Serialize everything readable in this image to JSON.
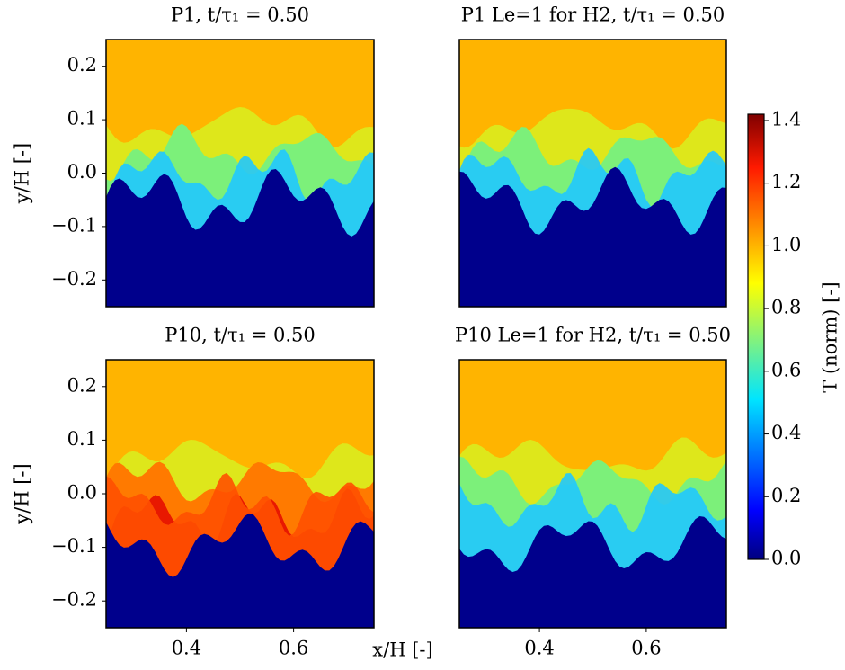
{
  "chart_data": [
    {
      "type": "heatmap",
      "title": "P1, t/τ₁ = 0.50",
      "ylabel": "y/H [-]",
      "xlim": [
        0.25,
        0.75
      ],
      "ylim": [
        -0.25,
        0.25
      ],
      "yticks": [
        {
          "value": -0.2,
          "label": "−0.2"
        },
        {
          "value": -0.1,
          "label": "−0.1"
        },
        {
          "value": 0.0,
          "label": "0.0"
        },
        0.1,
        0.2
      ]
    },
    {
      "type": "heatmap",
      "title": "P1 Le=1 for H2, t/τ₁ = 0.50",
      "xlim": [
        0.25,
        0.75
      ],
      "ylim": [
        -0.25,
        0.25
      ]
    },
    {
      "type": "heatmap",
      "title": "P10, t/τ₁ = 0.50",
      "ylabel": "y/H [-]",
      "xlim": [
        0.25,
        0.75
      ],
      "ylim": [
        -0.25,
        0.25
      ],
      "yticks": [
        {
          "value": -0.2,
          "label": "−0.2"
        },
        {
          "value": -0.1,
          "label": "−0.1"
        },
        {
          "value": 0.0,
          "label": "0.0"
        },
        0.1,
        0.2
      ],
      "xticks": [
        0.4,
        0.6
      ]
    },
    {
      "type": "heatmap",
      "title": "P10 Le=1 for H2, t/τ₁ = 0.50",
      "xlim": [
        0.25,
        0.75
      ],
      "ylim": [
        -0.25,
        0.25
      ],
      "xticks": [
        0.4,
        0.6
      ]
    }
  ],
  "xlabel": "x/H [-]",
  "colorbar": {
    "label": "T (norm) [-]",
    "colormap": "jet",
    "lim": [
      0,
      1.42
    ],
    "ticks": [
      {
        "value": 0.0,
        "label": "0.0"
      },
      0.2,
      0.4,
      0.6,
      0.8,
      {
        "value": 1.0,
        "label": "1.0"
      },
      1.2,
      1.4
    ]
  }
}
